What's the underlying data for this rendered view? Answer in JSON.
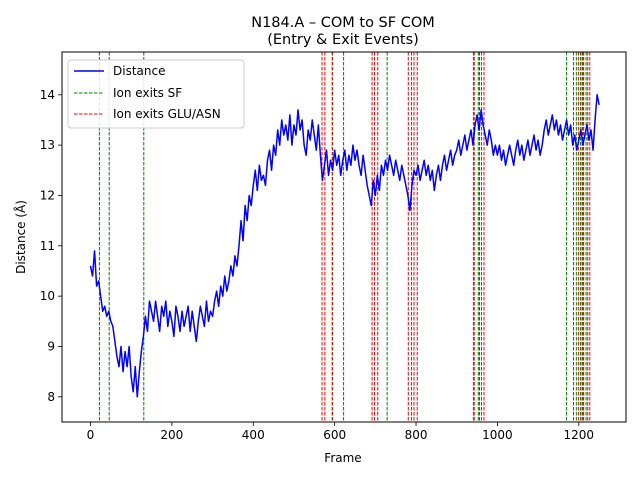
{
  "chart_data": {
    "type": "line",
    "title": "N184.A – COM to SF COM",
    "subtitle": "(Entry & Exit Events)",
    "xlabel": "Frame",
    "ylabel": "Distance (Å)",
    "xlim": [
      -70,
      1316
    ],
    "ylim": [
      7.5,
      14.85
    ],
    "xticks": [
      0,
      200,
      400,
      600,
      800,
      1000,
      1200
    ],
    "yticks": [
      8,
      9,
      10,
      11,
      12,
      13,
      14
    ],
    "grid": false,
    "legend_position": "upper-left",
    "series": [
      {
        "name": "Distance",
        "color": "#0000ff",
        "points": [
          [
            0,
            10.6
          ],
          [
            5,
            10.4
          ],
          [
            10,
            10.9
          ],
          [
            15,
            10.2
          ],
          [
            20,
            10.3
          ],
          [
            25,
            10.0
          ],
          [
            30,
            9.7
          ],
          [
            35,
            9.8
          ],
          [
            40,
            9.6
          ],
          [
            45,
            9.7
          ],
          [
            50,
            9.5
          ],
          [
            55,
            9.4
          ],
          [
            60,
            9.1
          ],
          [
            65,
            8.8
          ],
          [
            70,
            8.6
          ],
          [
            75,
            9.0
          ],
          [
            80,
            8.5
          ],
          [
            85,
            8.9
          ],
          [
            90,
            8.6
          ],
          [
            95,
            9.0
          ],
          [
            100,
            8.4
          ],
          [
            105,
            8.1
          ],
          [
            110,
            8.6
          ],
          [
            115,
            8.0
          ],
          [
            120,
            8.5
          ],
          [
            125,
            8.9
          ],
          [
            130,
            9.2
          ],
          [
            135,
            9.6
          ],
          [
            140,
            9.3
          ],
          [
            145,
            9.9
          ],
          [
            150,
            9.7
          ],
          [
            155,
            9.5
          ],
          [
            160,
            9.9
          ],
          [
            165,
            9.6
          ],
          [
            170,
            9.3
          ],
          [
            175,
            9.8
          ],
          [
            180,
            9.6
          ],
          [
            185,
            9.9
          ],
          [
            190,
            9.4
          ],
          [
            195,
            9.7
          ],
          [
            200,
            9.5
          ],
          [
            205,
            9.2
          ],
          [
            210,
            9.8
          ],
          [
            215,
            9.6
          ],
          [
            220,
            9.3
          ],
          [
            225,
            9.7
          ],
          [
            230,
            9.4
          ],
          [
            235,
            9.6
          ],
          [
            240,
            9.8
          ],
          [
            245,
            9.3
          ],
          [
            250,
            9.7
          ],
          [
            255,
            9.4
          ],
          [
            260,
            9.1
          ],
          [
            265,
            9.5
          ],
          [
            270,
            9.8
          ],
          [
            275,
            9.6
          ],
          [
            280,
            9.4
          ],
          [
            285,
            9.9
          ],
          [
            290,
            9.5
          ],
          [
            295,
            9.7
          ],
          [
            300,
            9.6
          ],
          [
            305,
            9.9
          ],
          [
            310,
            10.1
          ],
          [
            315,
            9.8
          ],
          [
            320,
            10.2
          ],
          [
            325,
            10.0
          ],
          [
            330,
            10.4
          ],
          [
            335,
            10.1
          ],
          [
            340,
            10.3
          ],
          [
            345,
            10.6
          ],
          [
            350,
            10.4
          ],
          [
            355,
            10.8
          ],
          [
            360,
            10.6
          ],
          [
            365,
            11.0
          ],
          [
            370,
            11.5
          ],
          [
            375,
            11.1
          ],
          [
            380,
            11.8
          ],
          [
            385,
            11.5
          ],
          [
            390,
            12.0
          ],
          [
            395,
            11.8
          ],
          [
            400,
            12.2
          ],
          [
            405,
            12.5
          ],
          [
            410,
            12.1
          ],
          [
            415,
            12.6
          ],
          [
            420,
            12.3
          ],
          [
            425,
            12.4
          ],
          [
            430,
            12.2
          ],
          [
            435,
            12.7
          ],
          [
            440,
            12.9
          ],
          [
            445,
            12.5
          ],
          [
            450,
            13.0
          ],
          [
            455,
            12.8
          ],
          [
            460,
            13.3
          ],
          [
            465,
            13.0
          ],
          [
            470,
            13.5
          ],
          [
            475,
            13.2
          ],
          [
            480,
            13.4
          ],
          [
            485,
            13.1
          ],
          [
            490,
            13.6
          ],
          [
            495,
            13.0
          ],
          [
            500,
            13.4
          ],
          [
            505,
            13.2
          ],
          [
            510,
            13.7
          ],
          [
            515,
            13.3
          ],
          [
            520,
            13.5
          ],
          [
            525,
            13.0
          ],
          [
            530,
            12.8
          ],
          [
            535,
            13.3
          ],
          [
            540,
            13.1
          ],
          [
            545,
            13.5
          ],
          [
            550,
            13.2
          ],
          [
            555,
            12.9
          ],
          [
            560,
            13.4
          ],
          [
            565,
            12.8
          ],
          [
            570,
            12.3
          ],
          [
            575,
            12.6
          ],
          [
            580,
            12.9
          ],
          [
            585,
            12.4
          ],
          [
            590,
            12.7
          ],
          [
            595,
            12.5
          ],
          [
            600,
            12.9
          ],
          [
            605,
            12.6
          ],
          [
            610,
            12.8
          ],
          [
            615,
            12.4
          ],
          [
            620,
            12.7
          ],
          [
            625,
            12.9
          ],
          [
            630,
            12.5
          ],
          [
            635,
            12.8
          ],
          [
            640,
            12.6
          ],
          [
            645,
            13.0
          ],
          [
            650,
            12.7
          ],
          [
            655,
            12.9
          ],
          [
            660,
            12.6
          ],
          [
            665,
            12.4
          ],
          [
            670,
            12.8
          ],
          [
            675,
            12.5
          ],
          [
            680,
            12.2
          ],
          [
            685,
            12.0
          ],
          [
            690,
            11.8
          ],
          [
            695,
            12.3
          ],
          [
            700,
            12.0
          ],
          [
            705,
            12.4
          ],
          [
            710,
            12.1
          ],
          [
            715,
            12.6
          ],
          [
            720,
            12.4
          ],
          [
            725,
            12.7
          ],
          [
            730,
            12.5
          ],
          [
            735,
            12.8
          ],
          [
            740,
            12.6
          ],
          [
            745,
            12.4
          ],
          [
            750,
            12.7
          ],
          [
            755,
            12.5
          ],
          [
            760,
            12.3
          ],
          [
            765,
            12.6
          ],
          [
            770,
            12.4
          ],
          [
            775,
            12.2
          ],
          [
            780,
            12.0
          ],
          [
            785,
            11.7
          ],
          [
            790,
            12.2
          ],
          [
            795,
            12.5
          ],
          [
            800,
            12.4
          ],
          [
            805,
            12.6
          ],
          [
            810,
            12.3
          ],
          [
            815,
            12.5
          ],
          [
            820,
            12.7
          ],
          [
            825,
            12.4
          ],
          [
            830,
            12.6
          ],
          [
            835,
            12.3
          ],
          [
            840,
            12.5
          ],
          [
            845,
            12.1
          ],
          [
            850,
            12.4
          ],
          [
            855,
            12.6
          ],
          [
            860,
            12.3
          ],
          [
            865,
            12.6
          ],
          [
            870,
            12.8
          ],
          [
            875,
            12.5
          ],
          [
            880,
            12.7
          ],
          [
            885,
            12.9
          ],
          [
            890,
            12.6
          ],
          [
            895,
            12.8
          ],
          [
            900,
            12.9
          ],
          [
            905,
            13.1
          ],
          [
            910,
            12.8
          ],
          [
            915,
            13.0
          ],
          [
            920,
            13.2
          ],
          [
            925,
            12.9
          ],
          [
            930,
            13.1
          ],
          [
            935,
            13.3
          ],
          [
            940,
            13.0
          ],
          [
            945,
            13.4
          ],
          [
            950,
            13.6
          ],
          [
            955,
            13.3
          ],
          [
            960,
            13.7
          ],
          [
            965,
            13.4
          ],
          [
            970,
            13.2
          ],
          [
            975,
            13.0
          ],
          [
            980,
            13.3
          ],
          [
            985,
            13.1
          ],
          [
            990,
            12.8
          ],
          [
            995,
            13.0
          ],
          [
            1000,
            12.8
          ],
          [
            1005,
            13.0
          ],
          [
            1010,
            12.7
          ],
          [
            1015,
            12.9
          ],
          [
            1020,
            12.6
          ],
          [
            1025,
            12.8
          ],
          [
            1030,
            13.0
          ],
          [
            1035,
            12.8
          ],
          [
            1040,
            12.6
          ],
          [
            1045,
            12.9
          ],
          [
            1050,
            13.1
          ],
          [
            1055,
            12.8
          ],
          [
            1060,
            13.0
          ],
          [
            1065,
            12.7
          ],
          [
            1070,
            12.9
          ],
          [
            1075,
            13.1
          ],
          [
            1080,
            12.8
          ],
          [
            1085,
            13.0
          ],
          [
            1090,
            13.2
          ],
          [
            1095,
            12.9
          ],
          [
            1100,
            13.1
          ],
          [
            1105,
            12.8
          ],
          [
            1110,
            13.0
          ],
          [
            1115,
            13.3
          ],
          [
            1120,
            13.5
          ],
          [
            1125,
            13.2
          ],
          [
            1130,
            13.4
          ],
          [
            1135,
            13.6
          ],
          [
            1140,
            13.3
          ],
          [
            1145,
            13.5
          ],
          [
            1150,
            13.2
          ],
          [
            1155,
            13.4
          ],
          [
            1160,
            13.1
          ],
          [
            1165,
            13.3
          ],
          [
            1170,
            13.5
          ],
          [
            1175,
            13.2
          ],
          [
            1180,
            13.4
          ],
          [
            1185,
            13.0
          ],
          [
            1190,
            13.2
          ],
          [
            1195,
            12.9
          ],
          [
            1200,
            13.1
          ],
          [
            1205,
            13.3
          ],
          [
            1210,
            13.0
          ],
          [
            1215,
            13.2
          ],
          [
            1220,
            13.4
          ],
          [
            1225,
            13.1
          ],
          [
            1230,
            13.3
          ],
          [
            1235,
            12.9
          ],
          [
            1240,
            13.5
          ],
          [
            1245,
            14.0
          ],
          [
            1250,
            13.8
          ]
        ]
      },
      {
        "name": "Ion exits SF",
        "color": "#008000",
        "style": "dashed",
        "x": [
          22,
          46,
          131,
          595,
          622,
          729,
          941,
          953,
          1170,
          1187,
          1194,
          1204,
          1210,
          1218
        ]
      },
      {
        "name": "Ion exits GLU/ASN",
        "color": "#ff0000",
        "style": "dashed",
        "x": [
          569,
          576,
          594,
          692,
          698,
          706,
          781,
          789,
          795,
          803,
          943,
          956,
          961,
          967,
          1199,
          1208,
          1212,
          1222,
          1227
        ]
      }
    ]
  }
}
